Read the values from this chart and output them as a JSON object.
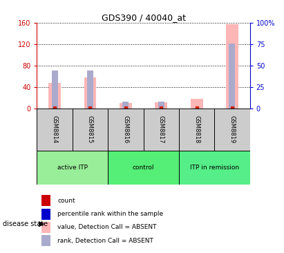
{
  "title": "GDS390 / 40040_at",
  "samples": [
    "GSM8814",
    "GSM8815",
    "GSM8816",
    "GSM8817",
    "GSM8818",
    "GSM8819"
  ],
  "pink_bars": [
    48,
    58,
    10,
    11,
    18,
    157
  ],
  "blue_bars_right": [
    44,
    44,
    8,
    8,
    0,
    76
  ],
  "ylim_left": [
    0,
    160
  ],
  "ylim_right": [
    0,
    100
  ],
  "yticks_left": [
    0,
    40,
    80,
    120,
    160
  ],
  "yticks_right": [
    0,
    25,
    50,
    75,
    100
  ],
  "ytick_labels_left": [
    "0",
    "40",
    "80",
    "120",
    "160"
  ],
  "ytick_labels_right": [
    "0",
    "25",
    "50",
    "75",
    "100%"
  ],
  "left_color": "#CC0000",
  "right_color": "#0000CC",
  "pink_color": "#FFB6B6",
  "blue_absent_color": "#AAAACC",
  "group_info": [
    {
      "indices": [
        0,
        1
      ],
      "label": "active ITP",
      "color": "#99EE99"
    },
    {
      "indices": [
        2,
        3
      ],
      "label": "control",
      "color": "#55EE77"
    },
    {
      "indices": [
        4,
        5
      ],
      "label": "ITP in remission",
      "color": "#55EE88"
    }
  ],
  "sample_bg_color": "#CCCCCC",
  "disease_state_label": "disease state",
  "legend_colors": [
    "#CC0000",
    "#0000CC",
    "#FFB6B6",
    "#AAAACC"
  ],
  "legend_labels": [
    "count",
    "percentile rank within the sample",
    "value, Detection Call = ABSENT",
    "rank, Detection Call = ABSENT"
  ]
}
